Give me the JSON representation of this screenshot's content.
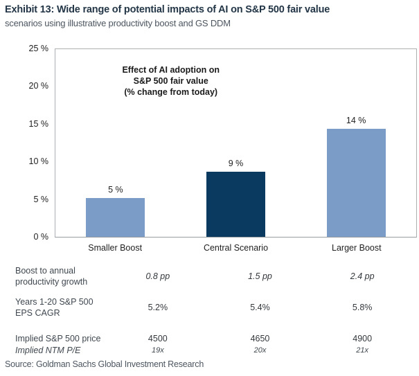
{
  "header": {
    "exhibit_title": "Exhibit 13: Wide range of potential impacts of AI on S&P 500 fair value",
    "subtitle": "scenarios using illustrative productivity boost and GS DDM"
  },
  "chart_data": {
    "type": "bar",
    "title": "Effect of AI adoption on S&P 500 fair value (% change from today)",
    "annotation": {
      "line1": "Effect of AI adoption on",
      "line2": "S&P 500 fair value",
      "line3": "(% change from today)"
    },
    "categories": [
      "Smaller Boost",
      "Central Scenario",
      "Larger Boost"
    ],
    "values": [
      5.2,
      8.7,
      14.4
    ],
    "value_labels": [
      "5 %",
      "9 %",
      "14 %"
    ],
    "bar_colors": [
      "#7C9CC8",
      "#0A3A5F",
      "#7C9CC8"
    ],
    "xlabel": "",
    "ylabel": "",
    "ylim": [
      0,
      25
    ],
    "ytick_labels": [
      "25 %",
      "20 %",
      "15 %",
      "10 %",
      "5 %",
      "0 %"
    ],
    "grid": false,
    "legend": "none"
  },
  "table": {
    "rows": [
      {
        "label": "Boost to annual\nproductivity growth",
        "values": [
          "0.8 pp",
          "1.5 pp",
          "2.4 pp"
        ]
      },
      {
        "label": "Years 1-20 S&P 500\nEPS CAGR",
        "values": [
          "5.2%",
          "5.4%",
          "5.8%"
        ]
      },
      {
        "label": "Implied S&P 500 price",
        "values": [
          "4500",
          "4650",
          "4900"
        ]
      },
      {
        "label": "Implied NTM P/E",
        "values": [
          "19x",
          "20x",
          "21x"
        ]
      }
    ]
  },
  "footer": {
    "source": "Source: Goldman Sachs Global Investment Research"
  }
}
